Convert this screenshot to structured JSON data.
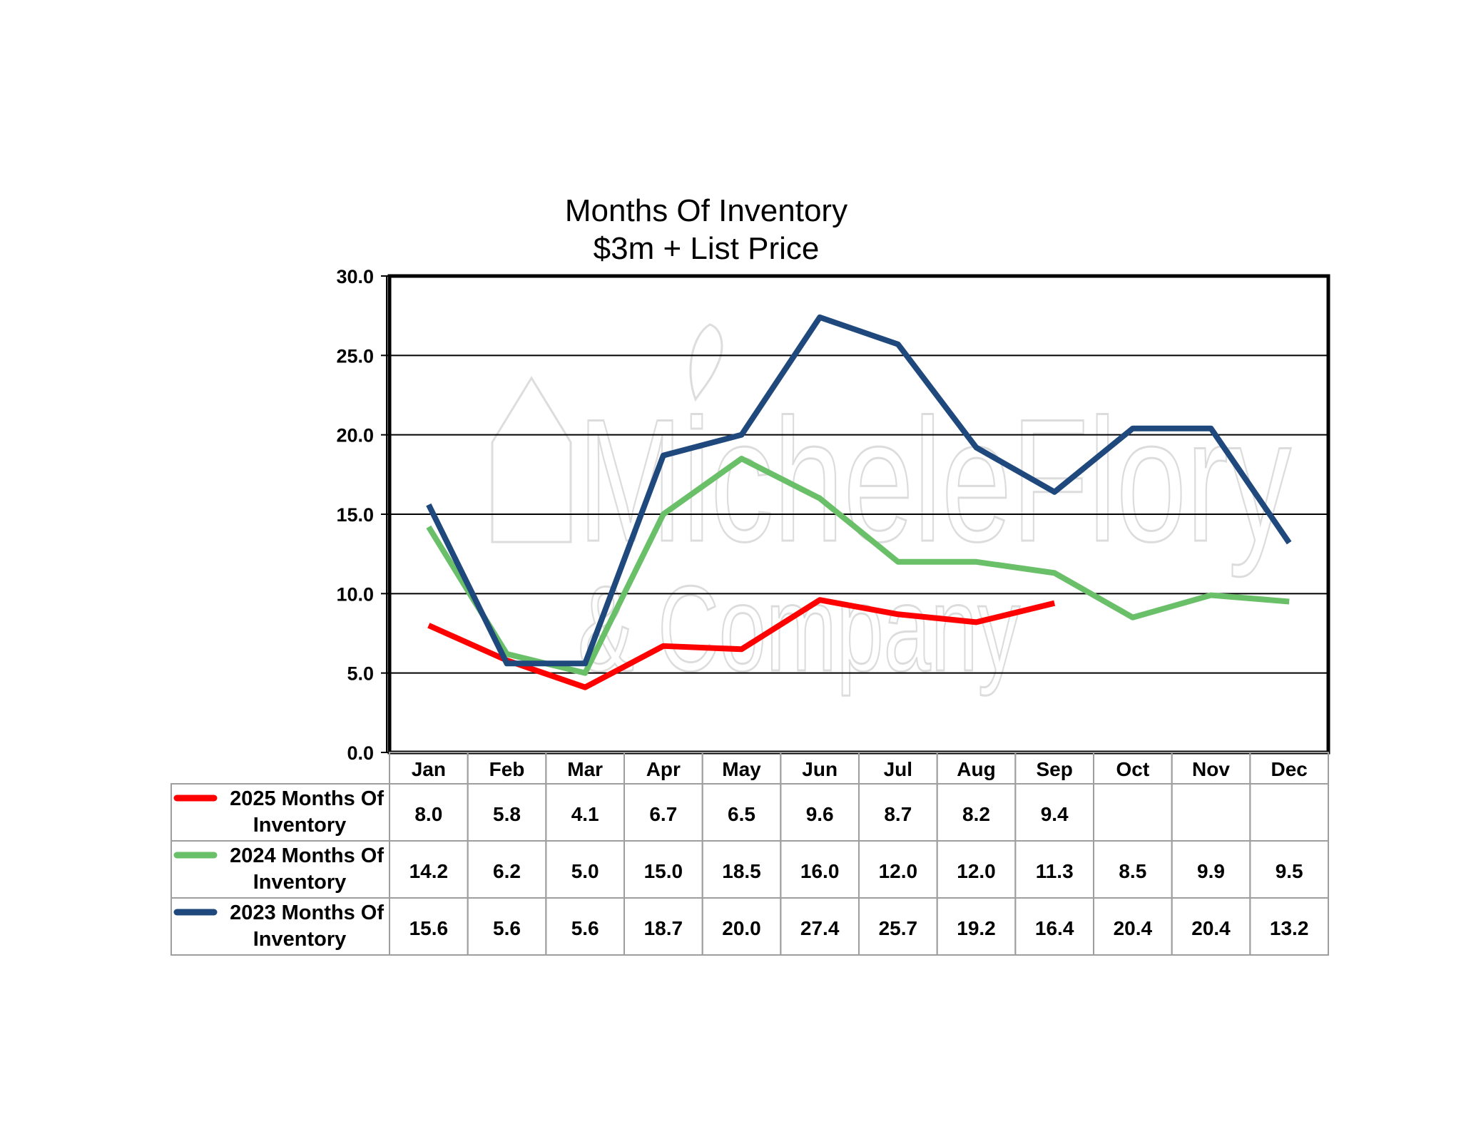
{
  "chart_data": {
    "type": "line",
    "title": [
      "Months Of Inventory",
      "$3m + List Price"
    ],
    "categories": [
      "Jan",
      "Feb",
      "Mar",
      "Apr",
      "May",
      "Jun",
      "Jul",
      "Aug",
      "Sep",
      "Oct",
      "Nov",
      "Dec"
    ],
    "ylim": [
      0,
      30
    ],
    "yticks": [
      "0.0",
      "5.0",
      "10.0",
      "15.0",
      "20.0",
      "25.0",
      "30.0"
    ],
    "grid": true,
    "legend": "data-table-left",
    "series": [
      {
        "name": "2025 Months Of Inventory",
        "label_lines": [
          "2025 Months Of",
          "Inventory"
        ],
        "color": "#ff0000",
        "values": [
          8.0,
          5.8,
          4.1,
          6.7,
          6.5,
          9.6,
          8.7,
          8.2,
          9.4,
          null,
          null,
          null
        ],
        "display": [
          "8.0",
          "5.8",
          "4.1",
          "6.7",
          "6.5",
          "9.6",
          "8.7",
          "8.2",
          "9.4",
          "",
          "",
          ""
        ]
      },
      {
        "name": "2024 Months Of Inventory",
        "label_lines": [
          "2024 Months Of",
          "Inventory"
        ],
        "color": "#6abf69",
        "values": [
          14.2,
          6.2,
          5.0,
          15.0,
          18.5,
          16.0,
          12.0,
          12.0,
          11.3,
          8.5,
          9.9,
          9.5
        ],
        "display": [
          "14.2",
          "6.2",
          "5.0",
          "15.0",
          "18.5",
          "16.0",
          "12.0",
          "12.0",
          "11.3",
          "8.5",
          "9.9",
          "9.5"
        ]
      },
      {
        "name": "2023 Months Of Inventory",
        "label_lines": [
          "2023 Months Of",
          "Inventory"
        ],
        "color": "#1f497d",
        "values": [
          15.6,
          5.6,
          5.6,
          18.7,
          20.0,
          27.4,
          25.7,
          19.2,
          16.4,
          20.4,
          20.4,
          13.2
        ],
        "display": [
          "15.6",
          "5.6",
          "5.6",
          "18.7",
          "20.0",
          "27.4",
          "25.7",
          "19.2",
          "16.4",
          "20.4",
          "20.4",
          "13.2"
        ]
      }
    ],
    "watermark": [
      "MicheleFlory",
      "& Company"
    ]
  }
}
